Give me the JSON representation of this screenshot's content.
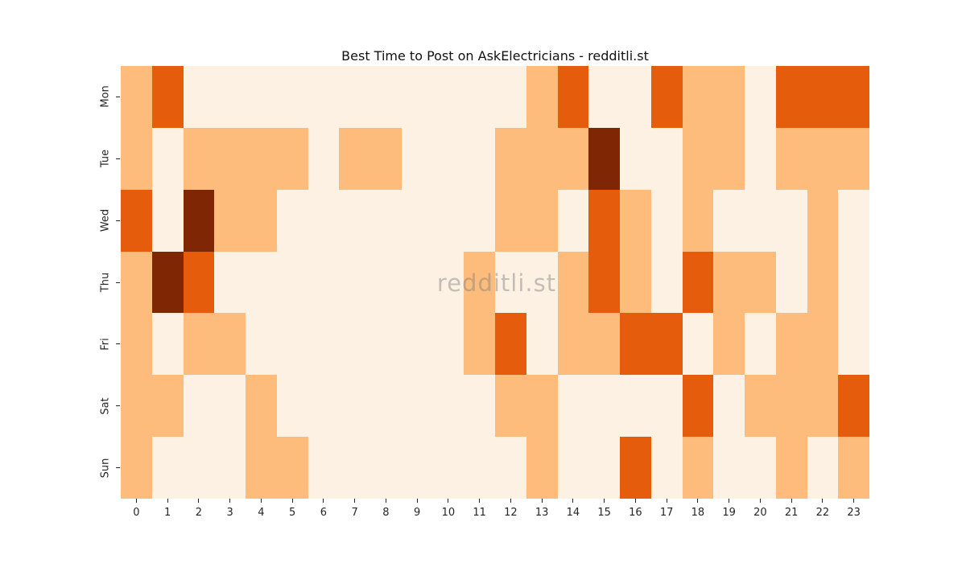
{
  "figure": {
    "watermark": "redditli.st"
  },
  "chart_data": {
    "type": "heatmap",
    "title": "Best Time to Post on AskElectricians - redditli.st",
    "xlabel": "",
    "ylabel": "",
    "x_tick_labels": [
      "0",
      "1",
      "2",
      "3",
      "4",
      "5",
      "6",
      "7",
      "8",
      "9",
      "10",
      "11",
      "12",
      "13",
      "14",
      "15",
      "16",
      "17",
      "18",
      "19",
      "20",
      "21",
      "22",
      "23"
    ],
    "y_tick_labels": [
      "Mon",
      "Tue",
      "Wed",
      "Thu",
      "Fri",
      "Sat",
      "Sun"
    ],
    "grid": false,
    "legend": "none",
    "levels_meaning": "posting activity intensity read from color: 0 lowest, 3 highest",
    "palette": {
      "0": "#fdf1e3",
      "1": "#fdbb7c",
      "2": "#e65c0d",
      "3": "#7f2704"
    },
    "watermark_color": "#808080",
    "values": [
      [
        1,
        2,
        0,
        0,
        0,
        0,
        0,
        0,
        0,
        0,
        0,
        0,
        0,
        1,
        2,
        0,
        0,
        2,
        1,
        1,
        0,
        2,
        2,
        2
      ],
      [
        1,
        0,
        1,
        1,
        1,
        1,
        0,
        1,
        1,
        0,
        0,
        0,
        1,
        1,
        1,
        3,
        0,
        0,
        1,
        1,
        0,
        1,
        1,
        1
      ],
      [
        2,
        0,
        3,
        1,
        1,
        0,
        0,
        0,
        0,
        0,
        0,
        0,
        1,
        1,
        0,
        2,
        1,
        0,
        1,
        0,
        0,
        0,
        1,
        0
      ],
      [
        1,
        3,
        2,
        0,
        0,
        0,
        0,
        0,
        0,
        0,
        0,
        1,
        0,
        0,
        1,
        2,
        1,
        0,
        2,
        1,
        1,
        0,
        1,
        0
      ],
      [
        1,
        0,
        1,
        1,
        0,
        0,
        0,
        0,
        0,
        0,
        0,
        1,
        2,
        0,
        1,
        1,
        2,
        2,
        0,
        1,
        0,
        1,
        1,
        0
      ],
      [
        1,
        1,
        0,
        0,
        1,
        0,
        0,
        0,
        0,
        0,
        0,
        0,
        1,
        1,
        0,
        0,
        0,
        0,
        2,
        0,
        1,
        1,
        1,
        2
      ],
      [
        1,
        0,
        0,
        0,
        1,
        1,
        0,
        0,
        0,
        0,
        0,
        0,
        0,
        1,
        0,
        0,
        2,
        0,
        1,
        0,
        0,
        1,
        0,
        1
      ]
    ]
  }
}
